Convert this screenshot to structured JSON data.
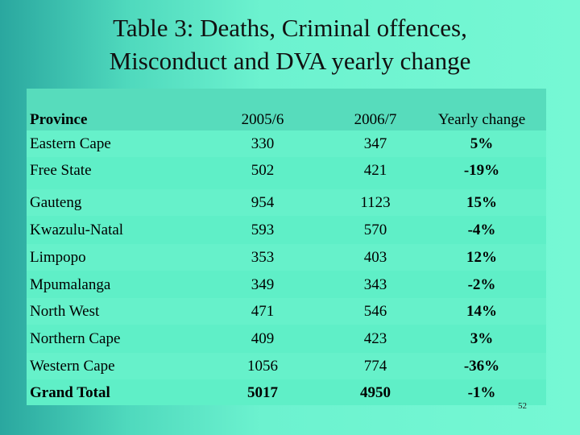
{
  "title": {
    "line1": "Table 3: Deaths, Criminal offences,",
    "line2": "Misconduct and DVA yearly change"
  },
  "table": {
    "headers": [
      "Province",
      "2005/6",
      "2006/7",
      "Yearly change"
    ],
    "rows": [
      [
        "Eastern Cape",
        "330",
        "347",
        "5%"
      ],
      [
        "Free State",
        "502",
        "421",
        "-19%"
      ],
      [
        "Gauteng",
        "954",
        "1123",
        "15%"
      ],
      [
        "Kwazulu-Natal",
        "593",
        "570",
        "-4%"
      ],
      [
        "Limpopo",
        "353",
        "403",
        "12%"
      ],
      [
        "Mpumalanga",
        "349",
        "343",
        "-2%"
      ],
      [
        "North West",
        "471",
        "546",
        "14%"
      ],
      [
        "Northern Cape",
        "409",
        "423",
        "3%"
      ],
      [
        "Western Cape",
        "1056",
        "774",
        "-36%"
      ],
      [
        "Grand Total",
        "5017",
        "4950",
        "-1%"
      ]
    ]
  },
  "page_number": "52",
  "colors": {
    "background_left": "#2aa79f",
    "background_right": "#76f8d4",
    "table_fill": "#5fefc7"
  }
}
